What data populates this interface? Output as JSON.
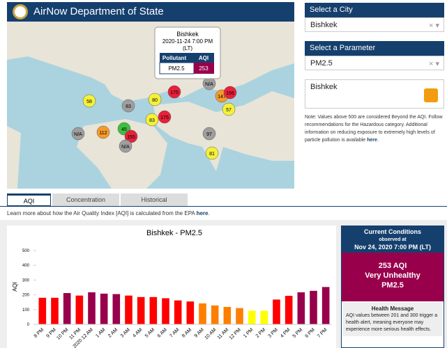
{
  "header": {
    "title": "AirNow Department of State"
  },
  "map": {
    "popup": {
      "city": "Bishkek",
      "time": "2020-11-24 7:00 PM",
      "zone": "(LT)",
      "col1": "Pollutant",
      "col2": "AQI",
      "pollutant": "PM2.5",
      "aqi": "253"
    },
    "markers": [
      {
        "label": "58",
        "color": "#f5f03a"
      },
      {
        "label": "83",
        "color": "#9e9e9e"
      },
      {
        "label": "80",
        "color": "#f5f03a"
      },
      {
        "label": "45",
        "color": "#3fbf3f"
      },
      {
        "label": "112",
        "color": "#f59a2a"
      },
      {
        "label": "N/A",
        "color": "#9e9e9e"
      },
      {
        "label": "155",
        "color": "#e8203a"
      },
      {
        "label": "83",
        "color": "#f5f03a"
      },
      {
        "label": "175",
        "color": "#e8203a"
      },
      {
        "label": "147",
        "color": "#f59a2a"
      },
      {
        "label": "156",
        "color": "#e8203a"
      },
      {
        "label": "57",
        "color": "#f5f03a"
      },
      {
        "label": "97",
        "color": "#9e9e9e"
      },
      {
        "label": "81",
        "color": "#f5f03a"
      },
      {
        "label": "175",
        "color": "#e8203a"
      },
      {
        "label": "N/A",
        "color": "#9e9e9e"
      },
      {
        "label": "N/A",
        "color": "#9e9e9e"
      }
    ]
  },
  "sidebar": {
    "city_label": "Select a City",
    "city": "Bishkek",
    "param_label": "Select a Parameter",
    "param": "PM2.5",
    "feed": "Bishkek",
    "note": "Note: Values above 500 are considered Beyond the AQI. Follow recommendations for the Hazardous category. Additional information on reducing exposure to extremely high levels of particle pollution is available",
    "note_link": "here"
  },
  "tabs": [
    "AQI",
    "Concentration",
    "Historical"
  ],
  "info": {
    "text": "Learn more about how the Air Quality Index [AQI] is calculated from the EPA",
    "link": "here"
  },
  "current": {
    "title": "Current Conditions",
    "observed": "observed at",
    "time": "Nov 24, 2020 7:00 PM (LT)",
    "aqi": "253 AQI",
    "category": "Very Unhealthy",
    "pollutant": "PM2.5",
    "health_title": "Health Message",
    "health_text": "AQI values between 201 and 300 trigger a health alert, meaning everyone may experience more serious health effects."
  },
  "chart_data": {
    "type": "bar",
    "title": "Bishkek - PM2.5",
    "y_label": "AQI",
    "categories": [
      "8 PM",
      "9 PM",
      "10 PM",
      "11 PM",
      "2020 12 AM",
      "1 AM",
      "2 AM",
      "3 AM",
      "4 AM",
      "5 AM",
      "6 AM",
      "7 AM",
      "8 AM",
      "9 AM",
      "10 AM",
      "11 AM",
      "12 PM",
      "1 PM",
      "2 PM",
      "3 PM",
      "4 PM",
      "5 PM",
      "6 PM",
      "7 PM"
    ],
    "values": [
      180,
      180,
      212,
      195,
      217,
      208,
      205,
      195,
      185,
      185,
      177,
      162,
      155,
      142,
      128,
      118,
      110,
      92,
      92,
      168,
      193,
      217,
      227,
      253
    ],
    "colors": [
      "#ff0000",
      "#ff0000",
      "#99004c",
      "#ff0000",
      "#99004c",
      "#99004c",
      "#99004c",
      "#ff0000",
      "#ff0000",
      "#ff0000",
      "#ff0000",
      "#ff0000",
      "#ff0000",
      "#ff7e00",
      "#ff7e00",
      "#ff7e00",
      "#ff7e00",
      "#ffff00",
      "#ffff00",
      "#ff0000",
      "#ff0000",
      "#99004c",
      "#99004c",
      "#99004c"
    ],
    "ylim": [
      0,
      500
    ],
    "yticks": [
      0,
      100,
      200,
      300,
      400,
      500
    ],
    "grid": false
  }
}
